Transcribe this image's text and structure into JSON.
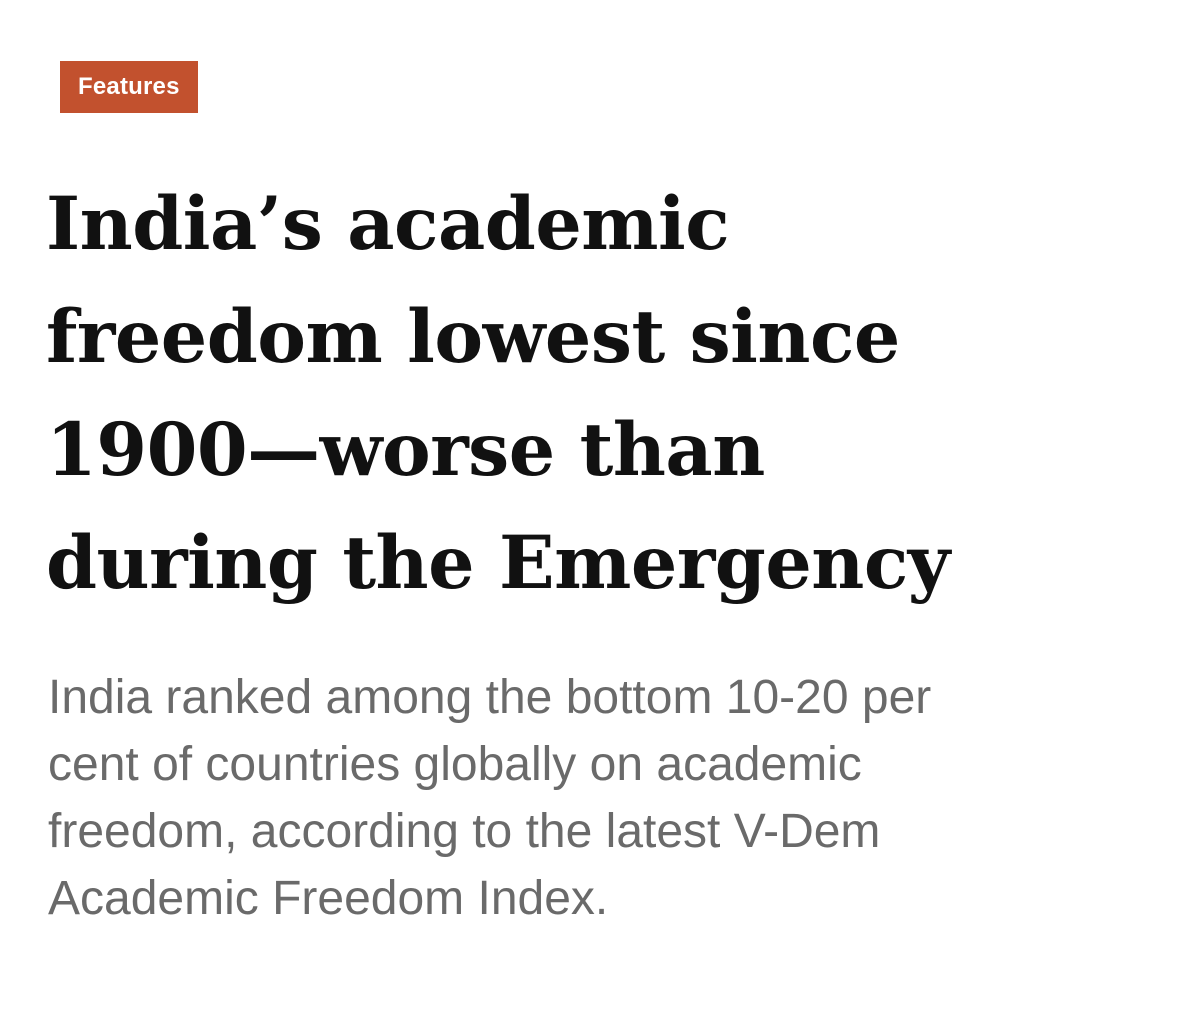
{
  "article": {
    "category": "Features",
    "headline_lines": [
      "India’s academic",
      "freedom lowest since",
      "1900—worse than",
      "during the Emergency"
    ],
    "standfirst_lines": [
      "India ranked among the bottom 10-20 per",
      "cent of countries globally on academic",
      "freedom, according to the latest V-Dem",
      "Academic Freedom Index."
    ]
  },
  "colors": {
    "tag_background": "#c2512e",
    "tag_text": "#ffffff",
    "headline_text": "#111111",
    "standfirst_text": "#6a6a6a",
    "page_background": "#ffffff"
  }
}
